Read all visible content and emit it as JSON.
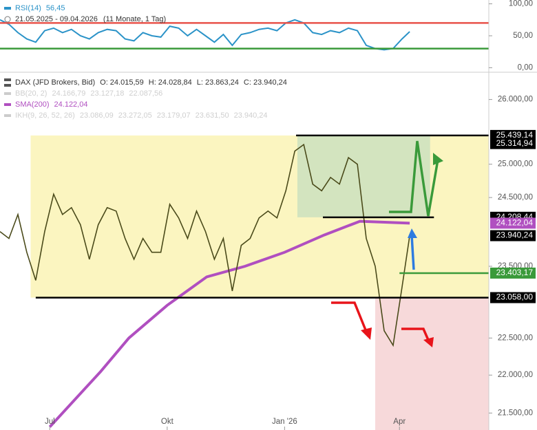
{
  "chart_data": [
    {
      "type": "line",
      "title": "RSI(14)",
      "title_value": "56,45",
      "subtitle": "21.05.2025 - 09.04.2026",
      "subtitle_note": "(11 Monate, 1 Tag)",
      "x": [
        "2025-05-23",
        "2025-05-30",
        "2025-06-06",
        "2025-06-13",
        "2025-06-20",
        "2025-06-27",
        "2025-07-04",
        "2025-07-11",
        "2025-07-18",
        "2025-07-25",
        "2025-08-01",
        "2025-08-08",
        "2025-08-15",
        "2025-08-22",
        "2025-08-29",
        "2025-09-05",
        "2025-09-12",
        "2025-09-19",
        "2025-09-26",
        "2025-10-03",
        "2025-10-10",
        "2025-10-17",
        "2025-10-24",
        "2025-10-31",
        "2025-11-07",
        "2025-11-14",
        "2025-11-21",
        "2025-11-28",
        "2025-12-05",
        "2025-12-12",
        "2025-12-19",
        "2025-12-26",
        "2026-01-02",
        "2026-01-09",
        "2026-01-16",
        "2026-01-23",
        "2026-01-30",
        "2026-02-06",
        "2026-02-13",
        "2026-02-20",
        "2026-02-27",
        "2026-03-06",
        "2026-03-13",
        "2026-03-20",
        "2026-03-27",
        "2026-04-03",
        "2026-04-09"
      ],
      "series": [
        {
          "name": "RSI(14)",
          "color": "#2b93c8",
          "values": [
            75,
            68,
            55,
            45,
            40,
            58,
            62,
            55,
            60,
            50,
            45,
            55,
            60,
            58,
            45,
            42,
            55,
            50,
            48,
            65,
            62,
            50,
            60,
            50,
            40,
            52,
            35,
            52,
            55,
            60,
            62,
            58,
            70,
            75,
            70,
            55,
            52,
            58,
            55,
            62,
            58,
            35,
            30,
            28,
            30,
            45,
            56.45
          ]
        }
      ],
      "xlim": [
        "2025-05-23",
        "2026-06-10"
      ],
      "ylim": [
        -6,
        106
      ],
      "yticks": [
        {
          "value": 0,
          "label": "0,00"
        },
        {
          "value": 50,
          "label": "50,00"
        },
        {
          "value": 100,
          "label": "100,00"
        }
      ],
      "levels": [
        {
          "value": 70,
          "color": "#e8524a"
        },
        {
          "value": 30,
          "color": "#3a9a3a"
        }
      ]
    },
    {
      "type": "line",
      "title": "DAX (JFD Brokers, Bid)",
      "log_scale": true,
      "ohlc_text": [
        "O: 24.015,59",
        "H: 24.028,84",
        "L: 23.863,24",
        "C: 23.940,24"
      ],
      "indicators": [
        {
          "name": "BB(20, 2)",
          "values_text": [
            "24.166,79",
            "23.127,18",
            "22.087,56"
          ],
          "color": "#cccccc"
        },
        {
          "name": "SMA(200)",
          "values_text": [
            "24.122,04"
          ],
          "color": "#b04fc0"
        },
        {
          "name": "IKH(9, 26, 52, 26)",
          "values_text": [
            "23.086,09",
            "23.272,05",
            "23.179,07",
            "23.631,50",
            "23.940,24"
          ],
          "color": "#cccccc"
        }
      ],
      "x": [
        "2025-05-23",
        "2025-05-30",
        "2025-06-06",
        "2025-06-13",
        "2025-06-20",
        "2025-06-27",
        "2025-07-04",
        "2025-07-11",
        "2025-07-18",
        "2025-07-25",
        "2025-08-01",
        "2025-08-08",
        "2025-08-15",
        "2025-08-22",
        "2025-08-29",
        "2025-09-05",
        "2025-09-12",
        "2025-09-19",
        "2025-09-26",
        "2025-10-03",
        "2025-10-10",
        "2025-10-17",
        "2025-10-24",
        "2025-10-31",
        "2025-11-07",
        "2025-11-14",
        "2025-11-21",
        "2025-11-28",
        "2025-12-05",
        "2025-12-12",
        "2025-12-19",
        "2025-12-26",
        "2026-01-02",
        "2026-01-09",
        "2026-01-16",
        "2026-01-23",
        "2026-01-30",
        "2026-02-06",
        "2026-02-13",
        "2026-02-20",
        "2026-02-27",
        "2026-03-06",
        "2026-03-13",
        "2026-03-20",
        "2026-03-27",
        "2026-04-03",
        "2026-04-09"
      ],
      "series": [
        {
          "name": "DAX (JFD Brokers, Bid)",
          "color": "#4a4a1a",
          "values": [
            24000,
            23900,
            24250,
            23700,
            23300,
            24000,
            24550,
            24250,
            24350,
            24100,
            23600,
            24100,
            24350,
            24300,
            23900,
            23600,
            23900,
            23700,
            23700,
            24400,
            24200,
            23900,
            24300,
            24000,
            23600,
            23900,
            23150,
            23800,
            23900,
            24200,
            24300,
            24200,
            24600,
            25200,
            25300,
            24700,
            24600,
            24800,
            24700,
            25100,
            25000,
            23900,
            23500,
            22600,
            22400,
            23200,
            23940.24
          ]
        }
      ],
      "sma": {
        "name": "SMA(200)",
        "color": "#b04fc0",
        "x": [
          "2025-07-01",
          "2025-08-10",
          "2025-09-01",
          "2025-10-01",
          "2025-11-01",
          "2025-12-01",
          "2026-01-01",
          "2026-02-01",
          "2026-03-01",
          "2026-04-09"
        ],
        "values": [
          21320,
          22050,
          22500,
          22950,
          23350,
          23500,
          23700,
          23950,
          24150,
          24122.04
        ]
      },
      "xlim": [
        "2025-05-23",
        "2026-06-10"
      ],
      "xticks": [
        {
          "value": "2025-07-01",
          "label": "Jul"
        },
        {
          "value": "2025-10-01",
          "label": "Okt"
        },
        {
          "value": "2026-01-01",
          "label": "Jan '26"
        },
        {
          "value": "2026-04-01",
          "label": "Apr"
        }
      ],
      "ylim": [
        21280,
        26400
      ],
      "yticks": [
        {
          "value": 21500,
          "label": "21.500,00"
        },
        {
          "value": 22000,
          "label": "22.000,00"
        },
        {
          "value": 22500,
          "label": "22.500,00"
        },
        {
          "value": 23500,
          "label": "23.500,00"
        },
        {
          "value": 24500,
          "label": "24.500,00"
        },
        {
          "value": 25000,
          "label": "25.000,00"
        },
        {
          "value": 26000,
          "label": "26.000,00"
        }
      ],
      "zones": [
        {
          "x": [
            "2025-06-16",
            "2026-06-10"
          ],
          "y": [
            23058,
            25439.14
          ],
          "color": "#fbf5c0"
        },
        {
          "x": [
            "2026-01-11",
            "2026-04-25"
          ],
          "y": [
            24208.44,
            25439.14
          ],
          "color": "#d3e4bf"
        },
        {
          "x": [
            "2026-03-13",
            "2026-06-10"
          ],
          "y": [
            21280,
            23058
          ],
          "color": "#f7d9da"
        }
      ],
      "levels": [
        {
          "value": 25439.14,
          "label": "25.439,14",
          "color": "#000000",
          "from": "2026-01-10",
          "to": "2026-06-10"
        },
        {
          "value": 25314.94,
          "label": "25.314,94",
          "color": "#000000"
        },
        {
          "value": 24208.44,
          "label": "24.208,44",
          "color": "#000000",
          "from": "2026-01-31",
          "to": "2026-04-28"
        },
        {
          "value": 24122.04,
          "label": "24.122,04",
          "color": "#b04fc0"
        },
        {
          "value": 23940.24,
          "label": "23.940,24",
          "color": "#000000"
        },
        {
          "value": 23403.17,
          "label": "23.403,17",
          "color": "#3a9a3a",
          "from": "2026-04-01",
          "to": "2026-06-10"
        },
        {
          "value": 23058,
          "label": "23.058,00",
          "color": "#000000",
          "from": "2025-06-20",
          "to": "2026-06-10"
        }
      ]
    }
  ]
}
